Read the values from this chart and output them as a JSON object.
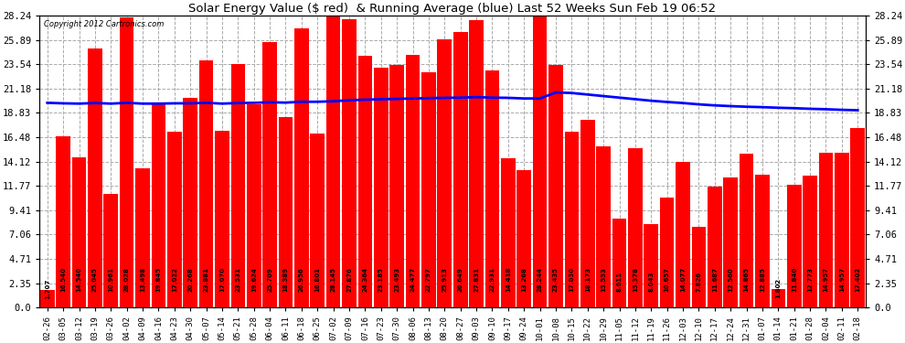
{
  "title": "Solar Energy Value ($ red)  & Running Average (blue) Last 52 Weeks Sun Feb 19 06:52",
  "copyright": "Copyright 2012 Cartronics.com",
  "bar_color": "#ff0000",
  "avg_color": "#0000ff",
  "bg_color": "#ffffff",
  "grid_color": "#aaaaaa",
  "text_color": "#000000",
  "yticks": [
    0.0,
    2.35,
    4.71,
    7.06,
    9.41,
    11.77,
    14.12,
    16.48,
    18.83,
    21.18,
    23.54,
    25.89,
    28.24
  ],
  "categories": [
    "02-26",
    "03-05",
    "03-12",
    "03-19",
    "03-26",
    "04-02",
    "04-09",
    "04-16",
    "04-23",
    "04-30",
    "05-07",
    "05-14",
    "05-21",
    "05-28",
    "06-04",
    "06-11",
    "06-18",
    "06-25",
    "07-02",
    "07-09",
    "07-16",
    "07-23",
    "07-30",
    "08-06",
    "08-13",
    "08-20",
    "08-27",
    "09-03",
    "09-10",
    "09-17",
    "09-24",
    "10-01",
    "10-08",
    "10-15",
    "10-22",
    "10-29",
    "11-05",
    "11-12",
    "11-19",
    "11-26",
    "12-03",
    "12-10",
    "12-17",
    "12-24",
    "12-31",
    "01-07",
    "01-14",
    "01-21",
    "01-28",
    "02-04",
    "02-11",
    "02-18"
  ],
  "values": [
    1.707,
    16.54,
    14.54,
    25.045,
    10.961,
    28.028,
    13.498,
    19.845,
    17.022,
    20.268,
    23.881,
    17.07,
    23.531,
    19.624,
    25.709,
    18.389,
    26.956,
    16.801,
    28.145,
    27.876,
    24.364,
    23.185,
    23.493,
    24.477,
    22.797,
    25.913,
    26.649,
    27.831,
    22.931,
    14.418,
    13.268,
    28.244,
    23.435,
    17.03,
    18.173,
    15.553,
    8.611,
    15.378,
    8.043,
    10.657,
    14.077,
    7.826,
    11.687,
    12.56,
    14.865,
    12.885,
    1.802,
    11.84,
    12.773,
    14.957,
    14.957,
    17.402
  ],
  "running_avg": [
    19.8,
    19.75,
    19.72,
    19.78,
    19.72,
    19.8,
    19.72,
    19.72,
    19.75,
    19.75,
    19.8,
    19.72,
    19.78,
    19.8,
    19.85,
    19.82,
    19.9,
    19.9,
    19.95,
    20.05,
    20.1,
    20.15,
    20.18,
    20.22,
    20.25,
    20.28,
    20.3,
    20.35,
    20.3,
    20.28,
    20.22,
    20.22,
    20.8,
    20.75,
    20.6,
    20.45,
    20.3,
    20.15,
    20.0,
    19.88,
    19.78,
    19.65,
    19.55,
    19.48,
    19.42,
    19.38,
    19.32,
    19.28,
    19.22,
    19.18,
    19.12,
    19.08
  ],
  "label_values": [
    "1.707",
    "16.540",
    "14.540",
    "25.045",
    "10.961",
    "28.028",
    "13.498",
    "19.845",
    "17.022",
    "20.268",
    "23.881",
    "17.070",
    "23.531",
    "19.624",
    "25.709",
    "18.389",
    "26.956",
    "16.801",
    "28.145",
    "27.876",
    "24.364",
    "23.185",
    "23.493",
    "24.477",
    "22.797",
    "25.913",
    "26.649",
    "27.831",
    "22.931",
    "14.418",
    "13.268",
    "28.244",
    "23.435",
    "17.030",
    "18.173",
    "15.553",
    "8.611",
    "15.378",
    "8.043",
    "10.657",
    "14.077",
    "7.826",
    "11.687",
    "12.560",
    "14.865",
    "12.885",
    "1.802",
    "11.840",
    "12.773",
    "14.957",
    "14.957",
    "17.402"
  ],
  "ylim_max": 30.0,
  "figwidth": 9.9,
  "figheight": 3.75,
  "dpi": 100
}
